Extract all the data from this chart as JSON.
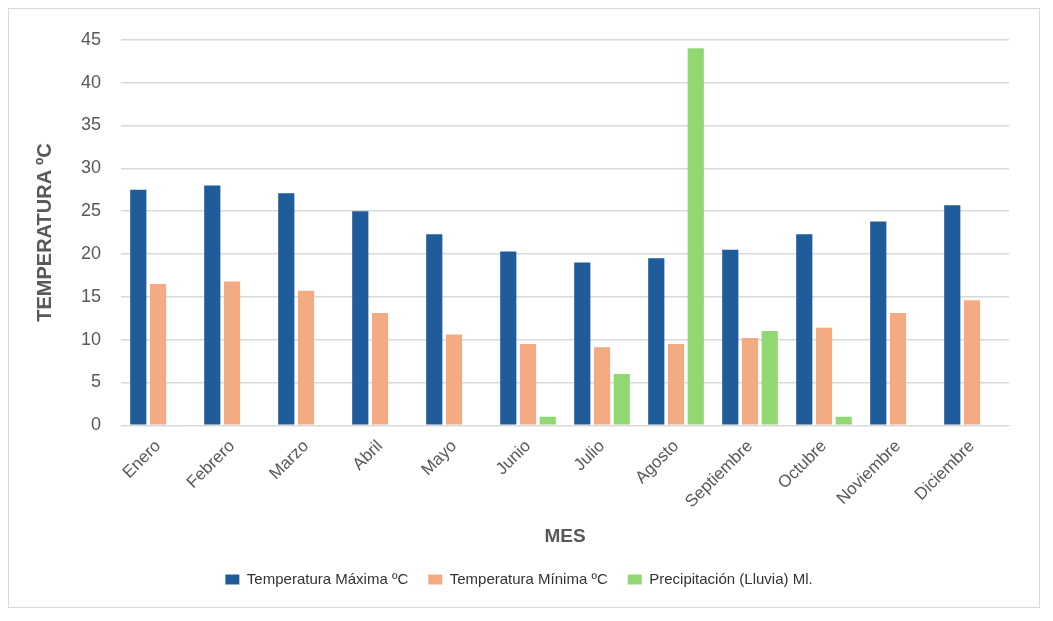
{
  "chart_data": {
    "type": "bar",
    "xlabel": "MES",
    "ylabel": "TEMPERATURA ºC",
    "categories": [
      "Enero",
      "Febrero",
      "Marzo",
      "Abril",
      "Mayo",
      "Junio",
      "Julio",
      "Agosto",
      "Septiembre",
      "Octubre",
      "Noviembre",
      "Diciembre"
    ],
    "series": [
      {
        "name": "Temperatura Máxima ºC",
        "color": "#1f5c99",
        "values": [
          27.5,
          28,
          27.1,
          25,
          22.3,
          20.3,
          19,
          19.5,
          20.5,
          22.3,
          23.8,
          25.7
        ]
      },
      {
        "name": "Temperatura Mínima ºC",
        "color": "#f4aa82",
        "values": [
          16.5,
          16.8,
          15.7,
          13.1,
          10.6,
          9.5,
          9.1,
          9.5,
          10.2,
          11.4,
          13.1,
          14.6
        ]
      },
      {
        "name": "Precipitación (Lluvia) Ml.",
        "color": "#92d872",
        "values": [
          null,
          null,
          null,
          null,
          null,
          1,
          6,
          44,
          11,
          1,
          null,
          null
        ]
      }
    ],
    "ylim": [
      0,
      45
    ],
    "yticks": [
      0,
      5,
      10,
      15,
      20,
      25,
      30,
      35,
      40,
      45
    ],
    "grid": "y",
    "legend": "bottom"
  }
}
